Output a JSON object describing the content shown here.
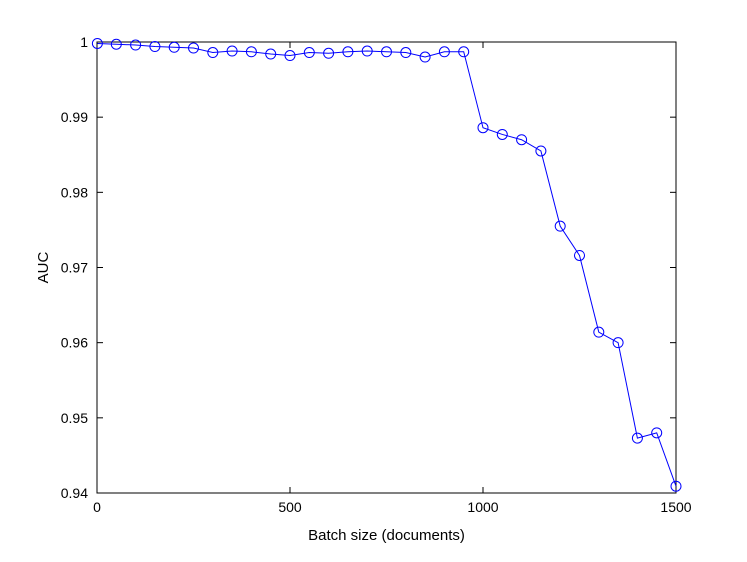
{
  "chart_data": {
    "type": "line",
    "title": "",
    "xlabel": "Batch size (documents)",
    "ylabel": "AUC",
    "xlim": [
      0,
      1500
    ],
    "ylim": [
      0.94,
      1.0
    ],
    "xticks": [
      0,
      500,
      1000,
      1500
    ],
    "xtick_labels": [
      "0",
      "500",
      "1000",
      "1500"
    ],
    "yticks": [
      0.94,
      0.95,
      0.96,
      0.97,
      0.98,
      0.99,
      1.0
    ],
    "ytick_labels": [
      "0.94",
      "0.95",
      "0.96",
      "0.97",
      "0.98",
      "0.99",
      "1"
    ],
    "grid": false,
    "legend": "none",
    "colors": {
      "series": "#0000ff",
      "axis": "#000000"
    },
    "series": [
      {
        "marker": "circle",
        "x": [
          1,
          50,
          100,
          150,
          200,
          250,
          300,
          350,
          400,
          450,
          500,
          550,
          600,
          650,
          700,
          750,
          800,
          850,
          900,
          950,
          1000,
          1050,
          1100,
          1150,
          1200,
          1250,
          1300,
          1350,
          1400,
          1450,
          1500
        ],
        "y": [
          0.9998,
          0.9997,
          0.9996,
          0.9994,
          0.9993,
          0.9992,
          0.9986,
          0.9988,
          0.9987,
          0.9984,
          0.9982,
          0.9986,
          0.9985,
          0.9987,
          0.9988,
          0.9987,
          0.9986,
          0.998,
          0.9987,
          0.9987,
          0.9886,
          0.9877,
          0.987,
          0.9855,
          0.9755,
          0.9716,
          0.9614,
          0.96,
          0.9473,
          0.948,
          0.9409
        ]
      }
    ]
  }
}
